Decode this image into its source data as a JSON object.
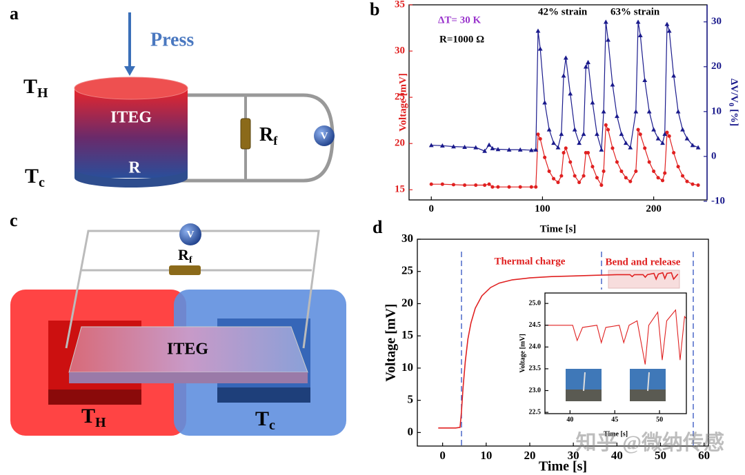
{
  "panels": {
    "a": {
      "label": "a",
      "press": "Press",
      "t_hot": {
        "text": "T",
        "sub": "H"
      },
      "t_cold": {
        "text": "T",
        "sub": "c"
      },
      "device": "ITEG",
      "resistor_r": "R",
      "resistor": {
        "text": "R",
        "sub": "f"
      },
      "meter": "V"
    },
    "b": {
      "label": "b"
    },
    "c": {
      "label": "c",
      "device": "ITEG",
      "resistor": {
        "text": "R",
        "sub": "f"
      },
      "meter": "V",
      "t_hot": {
        "text": "T",
        "sub": "H"
      },
      "t_cold": {
        "text": "T",
        "sub": "c"
      }
    },
    "d": {
      "label": "d"
    }
  },
  "watermark": "知乎 @微纳传感",
  "chart_data": [
    {
      "type": "line",
      "xlabel": "Time [s]",
      "ylabel": "Voltage [mV]",
      "y2label": {
        "text": "ΔV/V",
        "sub": "0",
        "suffix": " [%]"
      },
      "annotations": [
        "ΔT= 30 K",
        "R=1000 Ω",
        "42%  strain",
        "63% strain"
      ],
      "xlim": [
        -20,
        248
      ],
      "xticks": [
        0,
        100,
        200
      ],
      "ylim": [
        13.9,
        35
      ],
      "yticks": [
        15,
        20,
        25,
        30,
        35
      ],
      "y2lim": [
        -9.7,
        33.8
      ],
      "y2ticks": [
        -10,
        0,
        10,
        20,
        30
      ],
      "ycolor": "#e02020",
      "y2color": "#1a1a8c",
      "x": [
        0,
        10,
        20,
        30,
        40,
        48,
        52,
        55,
        60,
        70,
        80,
        90,
        94,
        96,
        98,
        102,
        106,
        110,
        114,
        117,
        119,
        121,
        125,
        129,
        133,
        137,
        139,
        141,
        145,
        149,
        153,
        155,
        157,
        159,
        163,
        167,
        171,
        175,
        179,
        184,
        186,
        188,
        192,
        196,
        200,
        204,
        208,
        210,
        212,
        214,
        218,
        222,
        226,
        230,
        235,
        240
      ],
      "series": [
        {
          "color": "#e02020",
          "marker": "circle",
          "values": [
            15.6,
            15.6,
            15.55,
            15.5,
            15.5,
            15.5,
            15.6,
            15.3,
            15.3,
            15.3,
            15.3,
            15.3,
            15.3,
            21,
            20.5,
            18.5,
            17,
            16.2,
            15.8,
            16.5,
            19,
            19.5,
            18,
            16.5,
            15.8,
            16.5,
            19,
            19,
            17.5,
            16.3,
            15.5,
            17,
            22,
            21.5,
            19.5,
            18,
            17,
            16.3,
            15.9,
            17,
            21.5,
            21,
            19.5,
            18,
            17,
            16.3,
            16,
            16.8,
            21.2,
            20.8,
            19,
            17.5,
            16.5,
            15.9,
            15.6,
            15.5
          ]
        },
        {
          "color": "#1a1a8c",
          "marker": "triangle",
          "axis": "y2",
          "values": [
            2.5,
            2.4,
            2.2,
            2.1,
            2.0,
            1.2,
            2.6,
            1.8,
            1.6,
            1.5,
            1.5,
            1.4,
            1.5,
            28,
            24,
            12,
            6,
            3,
            2,
            5,
            18,
            22,
            14,
            6,
            3,
            5,
            20,
            21,
            12,
            5,
            1.5,
            10,
            30,
            26,
            16,
            9,
            5,
            3,
            2,
            10,
            30,
            27,
            17,
            10,
            6,
            4,
            3,
            5,
            29.5,
            28,
            18,
            10,
            6,
            4,
            2.5,
            2
          ]
        }
      ]
    },
    {
      "type": "line",
      "xlabel": "Time [s]",
      "ylabel": "Voltage [mV]",
      "annotations": [
        "Thermal charge",
        "Bend and release"
      ],
      "xlim": [
        -5.8,
        61
      ],
      "xticks": [
        0,
        10,
        20,
        30,
        40,
        50,
        60
      ],
      "ylim": [
        -2.1,
        30
      ],
      "yticks": [
        0,
        5,
        10,
        15,
        20,
        25,
        30
      ],
      "x": [
        -1,
        1,
        3,
        4,
        4.3,
        4.7,
        5.2,
        5.8,
        6.5,
        7.5,
        9,
        11,
        13,
        16,
        20,
        25,
        30,
        35,
        40,
        43,
        43.5,
        44,
        46,
        46.5,
        47,
        48.5,
        49,
        49.5,
        50.5,
        51,
        51.5,
        52.5,
        53,
        54
      ],
      "series": [
        {
          "color": "#e02020",
          "values": [
            0.7,
            0.7,
            0.7,
            0.8,
            3,
            7,
            11,
            14.5,
            17,
            19.3,
            21.2,
            22.5,
            23.2,
            23.7,
            24,
            24.2,
            24.3,
            24.4,
            24.5,
            24.5,
            24.2,
            24.5,
            24.5,
            24.1,
            24.5,
            24.7,
            23.8,
            24.6,
            24.8,
            23.9,
            24.7,
            24.8,
            23.8,
            24.6
          ]
        }
      ]
    },
    {
      "type": "line",
      "xlabel": "Time [s]",
      "ylabel": "Voltage [mV]",
      "xlim": [
        37.2,
        53
      ],
      "xticks": [
        40,
        45,
        50
      ],
      "ylim": [
        22.47,
        25.24
      ],
      "yticks": [
        22.5,
        {
          "value": 23,
          "label": "23.0"
        },
        23.5,
        {
          "value": 24,
          "label": "24.0"
        },
        24.5,
        {
          "value": 25,
          "label": "25.0"
        }
      ],
      "x": [
        37.2,
        40.3,
        40.8,
        41.4,
        43,
        43.5,
        44,
        45.5,
        46,
        46.6,
        47.5,
        48.4,
        48.8,
        49.8,
        50.3,
        50.8,
        51.8,
        52.3,
        52.8,
        53
      ],
      "series": [
        {
          "color": "#e02020",
          "values": [
            24.5,
            24.5,
            24.15,
            24.45,
            24.5,
            24.1,
            24.45,
            24.5,
            24.1,
            24.5,
            24.6,
            23.6,
            24.5,
            24.8,
            23.7,
            24.6,
            24.85,
            23.7,
            24.7,
            24.65
          ]
        }
      ]
    }
  ]
}
